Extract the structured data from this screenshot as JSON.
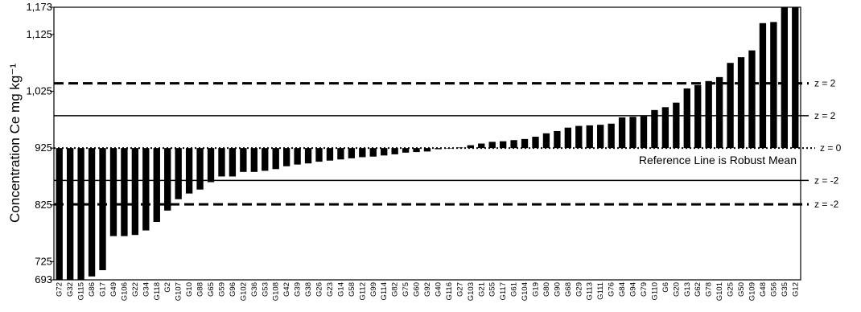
{
  "chart_data": {
    "type": "bar",
    "ylabel": "Concentration Ce mg kg⁻¹",
    "ylim": [
      693,
      1173
    ],
    "yticks": [
      "693",
      "725",
      "825",
      "925",
      "1,025",
      "1,125",
      "1,173"
    ],
    "ytick_values": [
      693,
      725,
      825,
      925,
      1025,
      1125,
      1173
    ],
    "bar_base": 925,
    "bar_color": "#000000",
    "categories": [
      "G72",
      "G32",
      "G115",
      "G86",
      "G17",
      "G49",
      "G106",
      "G22",
      "G34",
      "G118",
      "G2",
      "G107",
      "G10",
      "G88",
      "G65",
      "G59",
      "G96",
      "G102",
      "G36",
      "G53",
      "G108",
      "G42",
      "G39",
      "G38",
      "G26",
      "G23",
      "G14",
      "G58",
      "G112",
      "G99",
      "G114",
      "G82",
      "G75",
      "G60",
      "G92",
      "G40",
      "G116",
      "G27",
      "G103",
      "G21",
      "G55",
      "G117",
      "G61",
      "G104",
      "G19",
      "G80",
      "G90",
      "G68",
      "G29",
      "G113",
      "G111",
      "G76",
      "G84",
      "G94",
      "G79",
      "G110",
      "G6",
      "G20",
      "G13",
      "G62",
      "G78",
      "G101",
      "G25",
      "G50",
      "G109",
      "G48",
      "G56",
      "G35",
      "G12"
    ],
    "values": [
      693,
      693,
      693,
      699,
      710,
      770,
      770,
      772,
      780,
      795,
      815,
      835,
      845,
      852,
      865,
      875,
      875,
      883,
      883,
      885,
      888,
      893,
      896,
      898,
      901,
      903,
      905,
      907,
      909,
      910,
      912,
      914,
      917,
      918,
      919,
      923,
      925,
      926,
      930,
      933,
      936,
      937,
      939,
      941,
      945,
      951,
      955,
      961,
      964,
      965,
      966,
      968,
      979,
      980,
      981,
      992,
      997,
      1005,
      1030,
      1036,
      1043,
      1050,
      1075,
      1085,
      1097,
      1145,
      1147,
      1173,
      1173
    ],
    "reference_lines": [
      {
        "label": "z = 2",
        "value": 1039,
        "style": "dashed"
      },
      {
        "label": "z = 2",
        "value": 982,
        "style": "solid"
      },
      {
        "label": "z = 0",
        "value": 925,
        "style": "dotted"
      },
      {
        "label": "z = -2",
        "value": 868,
        "style": "solid"
      },
      {
        "label": "z = -2",
        "value": 826,
        "style": "dashed"
      }
    ],
    "annotation": "Reference Line is Robust Mean",
    "grid": false,
    "legend": "none"
  }
}
